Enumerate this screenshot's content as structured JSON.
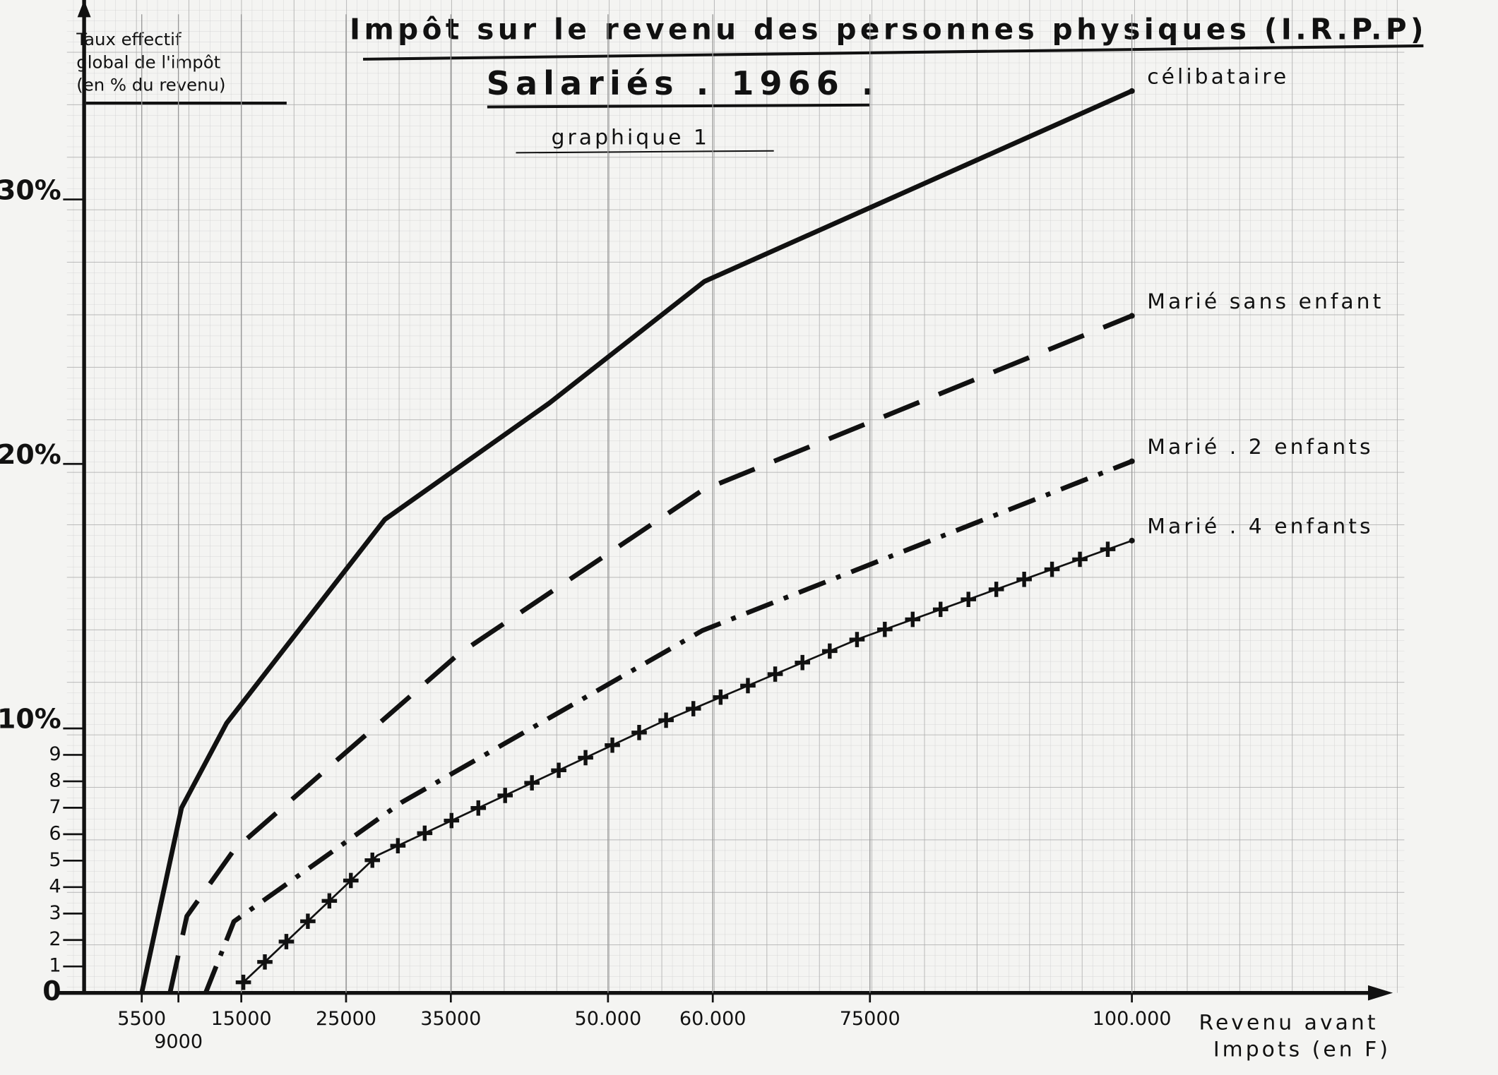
{
  "chart_data": {
    "type": "line",
    "title": "Impôt sur le revenu des personnes physiques (I.R.P.P)",
    "subtitle": "Salariés . 1966 .",
    "caption": "graphique 1",
    "y_label": [
      "Taux effectif",
      "global de l'impôt",
      "(en % du revenu)"
    ],
    "x_label": [
      "Revenu avant",
      "Impots (en F)"
    ],
    "xlim": [
      0,
      125000
    ],
    "ylim": [
      0,
      37
    ],
    "xticks": [
      5500,
      9000,
      15000,
      25000,
      35000,
      {
        "value": 50000,
        "label": "50.000"
      },
      {
        "value": 60000,
        "label": "60.000"
      },
      75000,
      {
        "value": 100000,
        "label": "100.000"
      }
    ],
    "yticks": [
      0,
      1,
      2,
      3,
      4,
      5,
      6,
      7,
      8,
      9,
      {
        "value": 10,
        "label": "10%"
      },
      {
        "value": 20,
        "label": "20%"
      },
      {
        "value": 30,
        "label": "30%"
      }
    ],
    "grid": true,
    "series": [
      {
        "name": "célibataire",
        "color": "#111111",
        "style": "solid",
        "x": [
          5500,
          9300,
          13600,
          28700,
          44400,
          59200,
          100000
        ],
        "values": [
          0,
          7.0,
          10.2,
          17.9,
          22.3,
          26.9,
          34.1
        ]
      },
      {
        "name": "Marié sans enfant",
        "color": "#111111",
        "style": "dash",
        "x": [
          8200,
          9800,
          14300,
          35700,
          59000,
          100000
        ],
        "values": [
          0,
          2.9,
          5.4,
          12.8,
          19.0,
          25.6
        ]
      },
      {
        "name": "Marié . 2 enfants",
        "color": "#111111",
        "style": "dashdot",
        "x": [
          11600,
          14300,
          30300,
          59000,
          100000
        ],
        "values": [
          0,
          2.7,
          7.2,
          13.7,
          20.1
        ]
      },
      {
        "name": "Marié . 4 enfants",
        "color": "#111111",
        "style": "cross",
        "x": [
          15200,
          28000,
          54900,
          74000,
          100000
        ],
        "values": [
          0.4,
          5.2,
          10.2,
          13.4,
          17.1
        ]
      }
    ]
  }
}
